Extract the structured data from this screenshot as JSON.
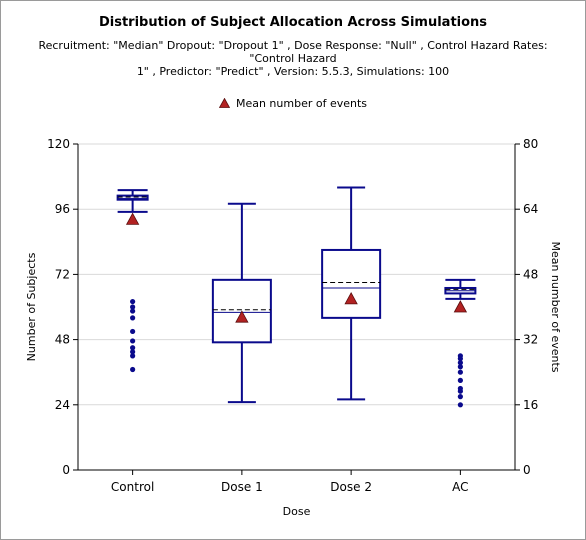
{
  "chart_data": {
    "type": "box",
    "title": "Distribution of Subject Allocation Across Simulations",
    "subtitle": "Recruitment: \"Median\" Dropout: \"Dropout 1\" , Dose Response: \"Null\" , Control Hazard Rates: \"Control Hazard 1\" , Predictor: \"Predict\" , Version: 5.5.3, Simulations: 100",
    "subtitle_lines": [
      "Recruitment: \"Median\" Dropout: \"Dropout 1\" , Dose Response: \"Null\" , Control Hazard Rates: \"Control Hazard",
      "1\" , Predictor: \"Predict\" , Version: 5.5.3, Simulations: 100"
    ],
    "xlabel": "Dose",
    "ylabel": "Number of Subjects",
    "y2label": "Mean number of events",
    "ylim": [
      0,
      120
    ],
    "y2lim": [
      0,
      80
    ],
    "yticks": [
      0,
      24,
      48,
      72,
      96,
      120
    ],
    "y2ticks": [
      0,
      16,
      32,
      48,
      64,
      80
    ],
    "grid": true,
    "legend": {
      "label": "Mean number of events",
      "placement": "top"
    },
    "colors": {
      "box": "#0a0a8c",
      "outlier": "#0a0a8c",
      "mean_marker": "#b22222",
      "grid": "#d9d9d9"
    },
    "categories": [
      "Control",
      "Dose 1",
      "Dose 2",
      "AC"
    ],
    "boxes": [
      {
        "category": "Control",
        "whisker_low": 95,
        "q1": 99.5,
        "median": 100,
        "mean": 100.5,
        "q3": 101,
        "whisker_high": 103,
        "outliers": [
          62,
          60,
          58.5,
          56,
          51,
          47.5,
          45,
          43.5,
          42,
          37
        ]
      },
      {
        "category": "Dose 1",
        "whisker_low": 25,
        "q1": 47,
        "median": 58,
        "mean": 59,
        "q3": 70,
        "whisker_high": 98,
        "outliers": []
      },
      {
        "category": "Dose 2",
        "whisker_low": 26,
        "q1": 56,
        "median": 67,
        "mean": 69,
        "q3": 81,
        "whisker_high": 104,
        "outliers": []
      },
      {
        "category": "AC",
        "whisker_low": 63,
        "q1": 65,
        "median": 66,
        "mean": 66.5,
        "q3": 67,
        "whisker_high": 70,
        "outliers": [
          42,
          41,
          39.5,
          38,
          36,
          33,
          30,
          29,
          27,
          24
        ]
      }
    ],
    "mean_events": [
      {
        "category": "Control",
        "value": 61.5
      },
      {
        "category": "Dose 1",
        "value": 37.5
      },
      {
        "category": "Dose 2",
        "value": 42
      },
      {
        "category": "AC",
        "value": 40
      }
    ]
  }
}
